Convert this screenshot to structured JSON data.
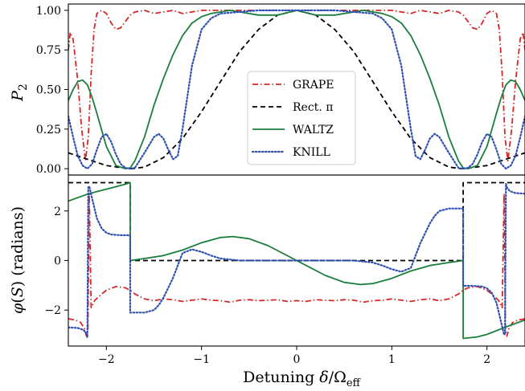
{
  "chart_data": [
    {
      "type": "line",
      "ylabel": "P2",
      "xlim": [
        -2.4,
        2.4
      ],
      "ylim": [
        -0.04,
        1.04
      ],
      "yticks": [
        "0.00",
        "0.25",
        "0.50",
        "0.75",
        "1.00"
      ],
      "legend": {
        "placement": "center",
        "entries": [
          "GRAPE",
          "Rect. π",
          "WALTZ",
          "KNILL"
        ]
      },
      "series": [
        {
          "name": "GRAPE",
          "color": "#d62728",
          "dash": "dashdot",
          "x": [
            -2.4,
            -2.38,
            -2.35,
            -2.3,
            -2.26,
            -2.22,
            -2.19,
            -2.16,
            -2.13,
            -2.1,
            -2.05,
            -2.0,
            -1.95,
            -1.9,
            -1.85,
            -1.8,
            -1.75,
            -1.7,
            -1.6,
            -1.5,
            -1.4,
            -1.3,
            -1.2,
            -1.1,
            -1.0,
            -0.8,
            -0.5,
            0.0,
            0.5,
            0.8,
            1.0,
            1.1,
            1.2,
            1.3,
            1.4,
            1.5,
            1.6,
            1.7,
            1.75,
            1.8,
            1.85,
            1.9,
            1.95,
            2.0,
            2.05,
            2.1,
            2.13,
            2.16,
            2.19,
            2.22,
            2.26,
            2.3,
            2.35,
            2.38,
            2.4
          ],
          "y": [
            0.75,
            0.86,
            0.82,
            0.55,
            0.25,
            0.05,
            0.2,
            0.6,
            0.88,
            0.98,
            1.0,
            0.98,
            0.92,
            0.88,
            0.89,
            0.93,
            0.97,
            0.99,
            1.0,
            0.98,
            0.99,
            1.0,
            0.98,
            0.99,
            1.0,
            1.0,
            1.0,
            1.0,
            1.0,
            1.0,
            1.0,
            0.99,
            0.98,
            1.0,
            0.99,
            0.98,
            1.0,
            0.99,
            0.97,
            0.93,
            0.89,
            0.88,
            0.92,
            0.98,
            1.0,
            0.98,
            0.88,
            0.6,
            0.2,
            0.05,
            0.25,
            0.55,
            0.82,
            0.86,
            0.75
          ]
        },
        {
          "name": "Rect. π",
          "color": "#000000",
          "dash": "dashed",
          "x": [
            -2.4,
            -2.2,
            -2.0,
            -1.8,
            -1.73,
            -1.6,
            -1.4,
            -1.2,
            -1.0,
            -0.8,
            -0.6,
            -0.4,
            -0.2,
            0.0,
            0.2,
            0.4,
            0.6,
            0.8,
            1.0,
            1.2,
            1.4,
            1.6,
            1.73,
            1.8,
            2.0,
            2.2,
            2.4
          ],
          "y": [
            0.1,
            0.06,
            0.02,
            0.003,
            0.0,
            0.01,
            0.07,
            0.19,
            0.36,
            0.55,
            0.74,
            0.88,
            0.97,
            1.0,
            0.97,
            0.88,
            0.74,
            0.55,
            0.36,
            0.19,
            0.07,
            0.01,
            0.0,
            0.003,
            0.02,
            0.06,
            0.1
          ]
        },
        {
          "name": "WALTZ",
          "color": "#1a7f3a",
          "dash": "solid",
          "x": [
            -2.4,
            -2.35,
            -2.3,
            -2.25,
            -2.2,
            -2.15,
            -2.1,
            -2.0,
            -1.9,
            -1.8,
            -1.75,
            -1.7,
            -1.6,
            -1.5,
            -1.4,
            -1.3,
            -1.2,
            -1.1,
            -1.0,
            -0.9,
            -0.8,
            -0.7,
            -0.6,
            -0.4,
            -0.2,
            0.0,
            0.2,
            0.4,
            0.6,
            0.7,
            0.8,
            0.9,
            1.0,
            1.1,
            1.2,
            1.3,
            1.4,
            1.5,
            1.6,
            1.7,
            1.75,
            1.8,
            1.9,
            2.0,
            2.1,
            2.15,
            2.2,
            2.25,
            2.3,
            2.35,
            2.4
          ],
          "y": [
            0.43,
            0.5,
            0.55,
            0.56,
            0.53,
            0.45,
            0.35,
            0.14,
            0.02,
            0.0,
            0.005,
            0.05,
            0.2,
            0.4,
            0.57,
            0.72,
            0.84,
            0.92,
            0.96,
            0.98,
            0.99,
            1.0,
            0.99,
            0.97,
            0.97,
            1.0,
            0.97,
            0.97,
            0.99,
            1.0,
            0.99,
            0.98,
            0.96,
            0.92,
            0.84,
            0.72,
            0.57,
            0.4,
            0.2,
            0.05,
            0.005,
            0.0,
            0.02,
            0.14,
            0.35,
            0.45,
            0.53,
            0.56,
            0.55,
            0.5,
            0.43
          ]
        },
        {
          "name": "KNILL",
          "color": "#3050b0",
          "dash": "dotted",
          "x": [
            -2.4,
            -2.35,
            -2.3,
            -2.25,
            -2.2,
            -2.15,
            -2.1,
            -2.05,
            -2.0,
            -1.95,
            -1.9,
            -1.85,
            -1.8,
            -1.75,
            -1.7,
            -1.6,
            -1.5,
            -1.45,
            -1.4,
            -1.35,
            -1.3,
            -1.25,
            -1.2,
            -1.1,
            -1.0,
            -0.9,
            -0.8,
            -0.6,
            -0.4,
            -0.2,
            0.0,
            0.2,
            0.4,
            0.6,
            0.8,
            0.9,
            1.0,
            1.1,
            1.2,
            1.25,
            1.3,
            1.35,
            1.4,
            1.45,
            1.5,
            1.6,
            1.7,
            1.75,
            1.8,
            1.85,
            1.9,
            1.95,
            2.0,
            2.05,
            2.1,
            2.15,
            2.2,
            2.25,
            2.3,
            2.35,
            2.4
          ],
          "y": [
            0.33,
            0.2,
            0.08,
            0.02,
            0.0,
            0.03,
            0.12,
            0.2,
            0.22,
            0.17,
            0.09,
            0.03,
            0.005,
            0.0,
            0.005,
            0.1,
            0.2,
            0.22,
            0.19,
            0.12,
            0.06,
            0.08,
            0.25,
            0.65,
            0.88,
            0.95,
            0.98,
            0.99,
            1.0,
            1.0,
            1.0,
            1.0,
            1.0,
            0.99,
            0.98,
            0.95,
            0.88,
            0.65,
            0.25,
            0.08,
            0.06,
            0.12,
            0.19,
            0.22,
            0.2,
            0.1,
            0.005,
            0.0,
            0.005,
            0.03,
            0.09,
            0.17,
            0.22,
            0.2,
            0.12,
            0.03,
            0.0,
            0.02,
            0.08,
            0.2,
            0.33
          ]
        }
      ]
    },
    {
      "type": "line",
      "ylabel": "φ(S) (radians)",
      "xlabel": "Detuning δ/Ωeff",
      "xlim": [
        -2.4,
        2.4
      ],
      "ylim": [
        -3.45,
        3.45
      ],
      "xticks": [
        "−2",
        "−1",
        "0",
        "1",
        "2"
      ],
      "yticks": [
        "−2",
        "0",
        "2"
      ],
      "series": [
        {
          "name": "GRAPE",
          "color": "#d62728",
          "dash": "dashdot",
          "x": [
            -2.4,
            -2.33,
            -2.27,
            -2.23,
            -2.21,
            -2.195,
            -2.18,
            -2.16,
            -2.12,
            -2.05,
            -2.0,
            -1.9,
            -1.8,
            -1.75,
            -1.7,
            -1.6,
            -1.5,
            -1.4,
            -1.3,
            -1.2,
            -1.1,
            -1.0,
            -0.9,
            -0.8,
            -0.7,
            -0.6,
            -0.5,
            -0.4,
            -0.3,
            -0.2,
            -0.1,
            0.0,
            0.1,
            0.2,
            0.3,
            0.4,
            0.5,
            0.6,
            0.7,
            0.8,
            0.9,
            1.0,
            1.1,
            1.2,
            1.3,
            1.4,
            1.5,
            1.6,
            1.7,
            1.75,
            1.8,
            1.9,
            2.0,
            2.05,
            2.12,
            2.16,
            2.18,
            2.195,
            2.21,
            2.23,
            2.27,
            2.33,
            2.4
          ],
          "y": [
            -2.35,
            -2.4,
            -2.5,
            -2.75,
            -3.05,
            -2.8,
            2.7,
            -1.9,
            -1.6,
            -1.35,
            -1.2,
            -1.05,
            -1.1,
            -1.2,
            -1.35,
            -1.55,
            -1.62,
            -1.55,
            -1.58,
            -1.65,
            -1.6,
            -1.55,
            -1.6,
            -1.62,
            -1.68,
            -1.6,
            -1.58,
            -1.62,
            -1.6,
            -1.58,
            -1.65,
            -1.62,
            -1.65,
            -1.58,
            -1.6,
            -1.62,
            -1.58,
            -1.6,
            -1.68,
            -1.62,
            -1.6,
            -1.55,
            -1.6,
            -1.65,
            -1.58,
            -1.55,
            -1.62,
            -1.55,
            -1.35,
            -1.2,
            -1.1,
            -1.05,
            -1.2,
            -1.35,
            -1.6,
            -1.9,
            2.7,
            -2.8,
            -3.05,
            -2.75,
            -2.5,
            -2.4,
            -2.35
          ]
        },
        {
          "name": "Rect. π",
          "color": "#000000",
          "dash": "dashed",
          "x": [
            -2.4,
            -1.75,
            -1.75,
            1.75,
            1.75,
            2.4
          ],
          "y": [
            3.14159,
            3.14159,
            0.0,
            0.0,
            3.14159,
            3.14159
          ]
        },
        {
          "name": "WALTZ",
          "color": "#1a7f3a",
          "dash": "solid",
          "x": [
            -2.4,
            -2.2,
            -2.0,
            -1.9,
            -1.8,
            -1.75,
            -1.75,
            -1.6,
            -1.4,
            -1.2,
            -1.0,
            -0.8,
            -0.67,
            -0.5,
            -0.3,
            0.0,
            0.3,
            0.5,
            0.67,
            0.8,
            1.0,
            1.2,
            1.4,
            1.6,
            1.75,
            1.75,
            1.9,
            2.0,
            2.2,
            2.4
          ],
          "y": [
            2.4,
            2.68,
            2.88,
            2.98,
            3.08,
            3.14159,
            0.0,
            0.08,
            0.2,
            0.42,
            0.72,
            0.93,
            0.97,
            0.88,
            0.6,
            0.0,
            -0.6,
            -0.88,
            -0.97,
            -0.93,
            -0.72,
            -0.42,
            -0.2,
            -0.08,
            0.0,
            -3.14159,
            -3.08,
            -2.98,
            -2.68,
            -2.4
          ]
        },
        {
          "name": "KNILL",
          "color": "#3050b0",
          "dash": "dotted",
          "x": [
            -2.4,
            -2.3,
            -2.24,
            -2.21,
            -2.2,
            -2.19,
            -2.18,
            -2.15,
            -2.1,
            -2.05,
            -2.0,
            -1.95,
            -1.85,
            -1.76,
            -1.75,
            -1.75,
            -1.74,
            -1.6,
            -1.5,
            -1.45,
            -1.4,
            -1.35,
            -1.3,
            -1.25,
            -1.2,
            -1.1,
            -1.0,
            -0.9,
            -0.8,
            -0.6,
            -0.4,
            -0.2,
            0.0,
            0.2,
            0.4,
            0.6,
            0.8,
            0.9,
            1.0,
            1.1,
            1.2,
            1.25,
            1.3,
            1.35,
            1.4,
            1.45,
            1.5,
            1.6,
            1.74,
            1.75,
            1.75,
            1.76,
            1.85,
            1.95,
            2.0,
            2.05,
            2.1,
            2.15,
            2.18,
            2.19,
            2.2,
            2.21,
            2.24,
            2.3,
            2.4
          ],
          "y": [
            -2.7,
            -2.72,
            -2.8,
            -2.95,
            -3.1,
            2.95,
            3.0,
            2.5,
            1.7,
            1.3,
            1.12,
            1.05,
            1.02,
            1.02,
            1.02,
            -2.1,
            -2.1,
            -2.1,
            -2.0,
            -1.8,
            -1.5,
            -1.1,
            -0.7,
            -0.2,
            0.3,
            0.45,
            0.35,
            0.2,
            0.08,
            0.0,
            0.0,
            0.0,
            0.0,
            0.0,
            0.0,
            0.0,
            -0.08,
            -0.2,
            -0.35,
            -0.45,
            -0.3,
            0.2,
            0.7,
            1.1,
            1.5,
            1.8,
            2.0,
            2.1,
            2.1,
            2.1,
            -1.02,
            -1.02,
            -1.02,
            -1.05,
            -1.12,
            -1.3,
            -1.7,
            -2.5,
            -3.0,
            -2.95,
            3.1,
            2.95,
            2.8,
            2.72,
            2.7
          ]
        }
      ]
    }
  ]
}
